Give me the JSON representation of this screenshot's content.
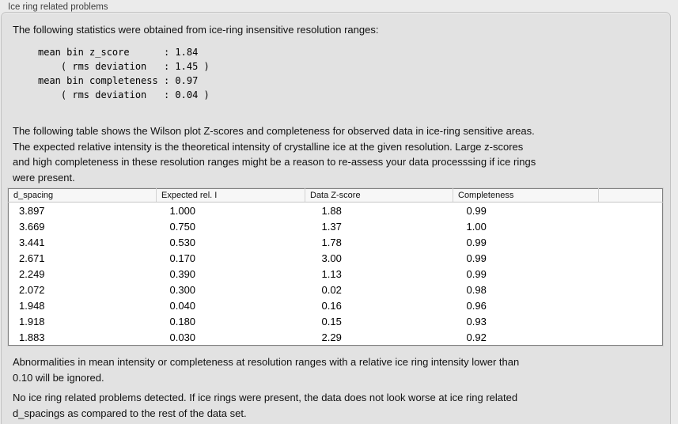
{
  "panel": {
    "title": "Ice ring related problems"
  },
  "intro": {
    "text": "The following statistics were obtained from ice-ring insensitive resolution ranges:"
  },
  "stats_block": {
    "lines": [
      "mean bin z_score      : 1.84",
      "    ( rms deviation   : 1.45 )",
      "mean bin completeness : 0.97",
      "    ( rms deviation   : 0.04 )"
    ]
  },
  "table_intro": {
    "text": "The following table shows the Wilson plot Z-scores and completeness for observed data in ice-ring sensitive areas.\nThe expected relative intensity is the theoretical intensity of crystalline ice at the given resolution. Large z-scores\nand high completeness in these resolution ranges might be a reason to re-assess your data processsing if ice rings\nwere present."
  },
  "table": {
    "columns": [
      "d_spacing",
      "Expected rel. I",
      "Data Z-score",
      "Completeness",
      ""
    ],
    "rows": [
      [
        "3.897",
        "1.000",
        "1.88",
        "0.99",
        ""
      ],
      [
        "3.669",
        "0.750",
        "1.37",
        "1.00",
        ""
      ],
      [
        "3.441",
        "0.530",
        "1.78",
        "0.99",
        ""
      ],
      [
        "2.671",
        "0.170",
        "3.00",
        "0.99",
        ""
      ],
      [
        "2.249",
        "0.390",
        "1.13",
        "0.99",
        ""
      ],
      [
        "2.072",
        "0.300",
        "0.02",
        "0.98",
        ""
      ],
      [
        "1.948",
        "0.040",
        "0.16",
        "0.96",
        ""
      ],
      [
        "1.918",
        "0.180",
        "0.15",
        "0.93",
        ""
      ],
      [
        "1.883",
        "0.030",
        "2.29",
        "0.92",
        ""
      ]
    ]
  },
  "notes": {
    "abnormalities": "Abnormalities in mean intensity or completeness at resolution ranges with a relative ice ring intensity lower than\n0.10 will be ignored.",
    "result": "No ice ring related problems detected. If ice rings were present, the data does not look worse at ice ring related\nd_spacings as compared to the rest of the data set."
  }
}
